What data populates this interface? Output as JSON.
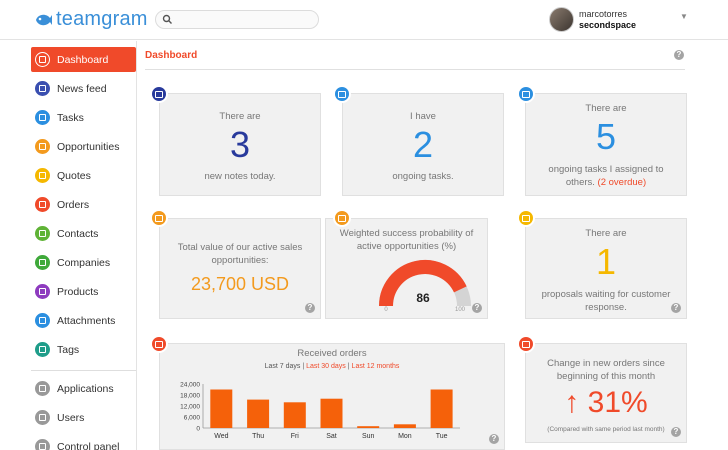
{
  "header": {
    "brand": "teamgram",
    "search_placeholder": "",
    "user_name": "marcotorres",
    "user_org": "secondspace",
    "caret": "▼"
  },
  "sidebar": {
    "items": [
      {
        "label": "Dashboard",
        "color": "#f04a2a",
        "active": true
      },
      {
        "label": "News feed",
        "color": "#3a4fb0"
      },
      {
        "label": "Tasks",
        "color": "#2b8fe0"
      },
      {
        "label": "Opportunities",
        "color": "#f39a1e"
      },
      {
        "label": "Quotes",
        "color": "#f5b800"
      },
      {
        "label": "Orders",
        "color": "#f04a2a"
      },
      {
        "label": "Contacts",
        "color": "#5fb336"
      },
      {
        "label": "Companies",
        "color": "#3fa93a"
      },
      {
        "label": "Products",
        "color": "#8e3bbf"
      },
      {
        "label": "Attachments",
        "color": "#2b8fe0"
      },
      {
        "label": "Tags",
        "color": "#1f9d8a"
      },
      {
        "label": "Applications",
        "color": "#999999"
      },
      {
        "label": "Users",
        "color": "#999999"
      },
      {
        "label": "Control panel",
        "color": "#999999"
      }
    ]
  },
  "main": {
    "title": "Dashboard",
    "help": "?",
    "cards": {
      "notes": {
        "top": "There are",
        "value": "3",
        "bottom": "new notes today."
      },
      "tasks": {
        "top": "I have",
        "value": "2",
        "bottom": "ongoing tasks."
      },
      "assigned": {
        "top": "There are",
        "value": "5",
        "bottom": "ongoing tasks I assigned to",
        "bottom2": "others.",
        "overdue": "(2 overdue)"
      },
      "sales": {
        "line1": "Total value of our active sales",
        "line2": "opportunities:",
        "value": "23,700 USD"
      },
      "probability": {
        "line1": "Weighted success probability of",
        "line2": "active opportunities (%)",
        "value": "86",
        "min": "0",
        "max": "100"
      },
      "proposals": {
        "top": "There are",
        "value": "1",
        "line1": "proposals waiting for customer",
        "line2": "response."
      },
      "change": {
        "line1": "Change in new orders since",
        "line2": "beginning of this month",
        "value": "↑ 31%",
        "note": "(Compared with same period last month)"
      }
    },
    "orders_chart": {
      "title": "Received orders",
      "tab_selected": "Last 7 days",
      "sep": "|",
      "tab_30": "Last 30 days",
      "tab_12": "Last 12 months"
    }
  },
  "chart_data": {
    "type": "bar",
    "title": "Received orders",
    "categories": [
      "Wed",
      "Thu",
      "Fri",
      "Sat",
      "Sun",
      "Mon",
      "Tue"
    ],
    "values": [
      21000,
      15500,
      14000,
      16000,
      1000,
      2000,
      21000
    ],
    "yticks": [
      "24,000",
      "18,000",
      "12,000",
      "6,000",
      "0"
    ],
    "ylim": [
      0,
      24000
    ],
    "color": "#f5610a"
  }
}
